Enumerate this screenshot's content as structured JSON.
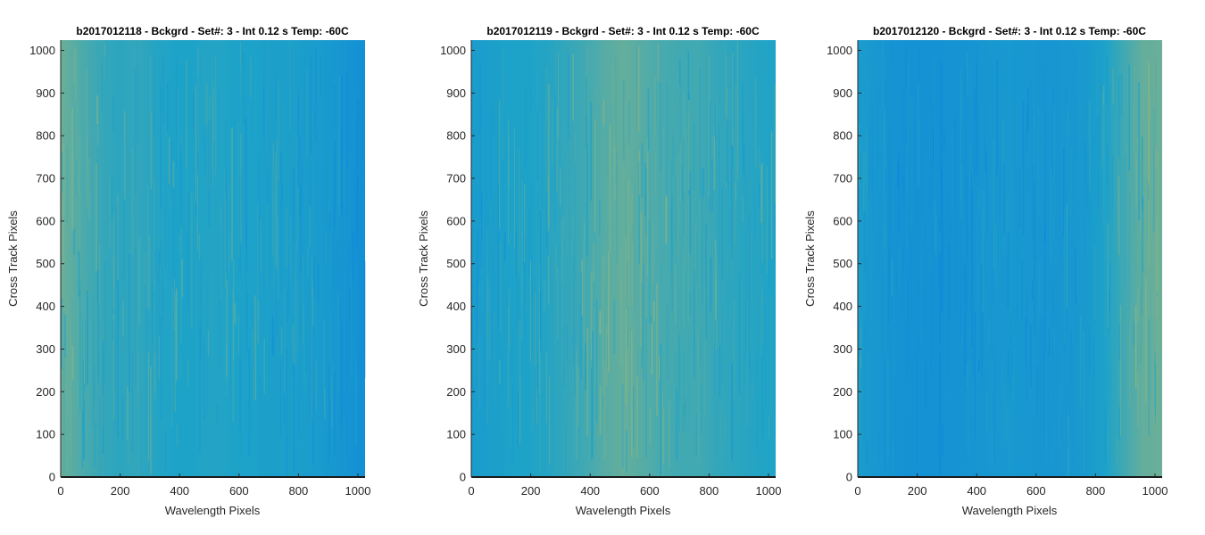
{
  "chart_data": [
    {
      "type": "heatmap",
      "title": "b2017012118 - Bckgrd - Set#: 3 - Int 0.12 s Temp: -60C",
      "xlabel": "Wavelength Pixels",
      "ylabel": "Cross Track Pixels",
      "xlim": [
        0,
        1024
      ],
      "ylim": [
        0,
        1024
      ],
      "xticks": [
        0,
        200,
        400,
        600,
        800,
        1000
      ],
      "yticks": [
        0,
        100,
        200,
        300,
        400,
        500,
        600,
        700,
        800,
        900,
        1000
      ],
      "colormap": "parula",
      "colors": {
        "low": "#0a7fe0",
        "mid": "#1ea3c8",
        "high": "#cdbf5a"
      },
      "column_profile": [
        0.72,
        0.64,
        0.58,
        0.54,
        0.56,
        0.52,
        0.5,
        0.5,
        0.52,
        0.5,
        0.48,
        0.46,
        0.46,
        0.42,
        0.38,
        0.3,
        0.22
      ]
    },
    {
      "type": "heatmap",
      "title": "b2017012119 - Bckgrd - Set#: 3 - Int 0.12 s Temp: -60C",
      "xlabel": "Wavelength Pixels",
      "ylabel": "Cross Track Pixels",
      "xlim": [
        0,
        1024
      ],
      "ylim": [
        0,
        1024
      ],
      "xticks": [
        0,
        200,
        400,
        600,
        800,
        1000
      ],
      "yticks": [
        0,
        100,
        200,
        300,
        400,
        500,
        600,
        700,
        800,
        900,
        1000
      ],
      "colormap": "parula",
      "colors": {
        "low": "#0a7fe0",
        "mid": "#1ea3c8",
        "high": "#cdbf5a"
      },
      "column_profile": [
        0.4,
        0.44,
        0.48,
        0.5,
        0.52,
        0.56,
        0.6,
        0.66,
        0.7,
        0.66,
        0.62,
        0.6,
        0.6,
        0.56,
        0.54,
        0.52,
        0.5
      ]
    },
    {
      "type": "heatmap",
      "title": "b2017012120 - Bckgrd - Set#: 3 - Int 0.12 s Temp: -60C",
      "xlabel": "Wavelength Pixels",
      "ylabel": "Cross Track Pixels",
      "xlim": [
        0,
        1024
      ],
      "ylim": [
        0,
        1024
      ],
      "xticks": [
        0,
        200,
        400,
        600,
        800,
        1000
      ],
      "yticks": [
        0,
        100,
        200,
        300,
        400,
        500,
        600,
        700,
        800,
        900,
        1000
      ],
      "colormap": "parula",
      "colors": {
        "low": "#0a7fe0",
        "mid": "#1ea3c8",
        "high": "#cdbf5a"
      },
      "column_profile": [
        0.42,
        0.34,
        0.28,
        0.26,
        0.26,
        0.28,
        0.3,
        0.34,
        0.36,
        0.34,
        0.32,
        0.34,
        0.38,
        0.48,
        0.6,
        0.7,
        0.72
      ]
    }
  ]
}
